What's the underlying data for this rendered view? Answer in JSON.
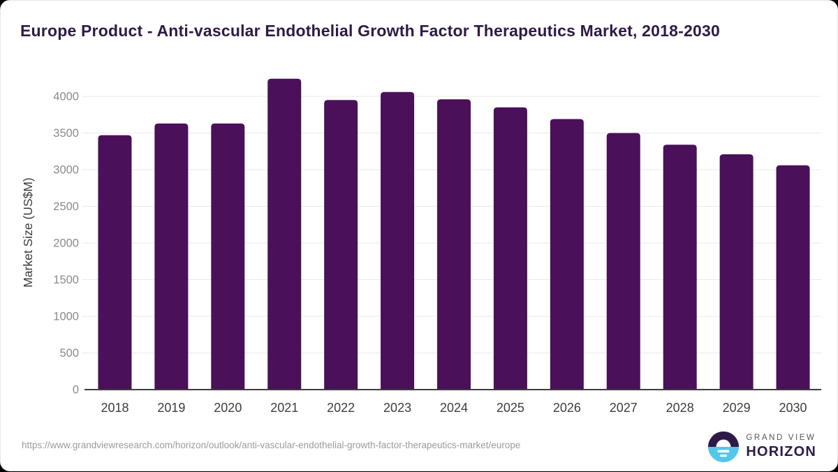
{
  "title": "Europe Product - Anti-vascular Endothelial Growth Factor Therapeutics Market, 2018-2030",
  "chart_data": {
    "type": "bar",
    "categories": [
      "2018",
      "2019",
      "2020",
      "2021",
      "2022",
      "2023",
      "2024",
      "2025",
      "2026",
      "2027",
      "2028",
      "2029",
      "2030"
    ],
    "values": [
      3470,
      3630,
      3630,
      4240,
      3950,
      4060,
      3960,
      3850,
      3690,
      3500,
      3340,
      3210,
      3060
    ],
    "title": "Europe Product - Anti-vascular Endothelial Growth Factor Therapeutics Market, 2018-2030",
    "xlabel": "",
    "ylabel": "Market Size (US$M)",
    "ylim": [
      0,
      4300
    ],
    "yticks": [
      0,
      500,
      1000,
      1500,
      2000,
      2500,
      3000,
      3500,
      4000
    ],
    "grid": true,
    "legend": "none",
    "bar_color": "#4a1059"
  },
  "colors": {
    "title_purple": "#2e1a47",
    "bar_purple": "#4a1059",
    "gridline": "#e9e9e9",
    "axis_line": "#3c3c3c",
    "x_tick_label": "#3d3d3d",
    "y_tick_label": "#8a8a8a",
    "url_gray": "#9b9b9b",
    "logo_blue": "#56c5ea",
    "logo_purple": "#2e1a47",
    "logo_gray": "#54555a"
  },
  "footer": {
    "source_url": "https://www.grandviewresearch.com/horizon/outlook/anti-vascular-endothelial-growth-factor-therapeutics-market/europe",
    "logo": {
      "brand_top": "GRAND VIEW",
      "brand_bottom": "HORIZON"
    }
  }
}
